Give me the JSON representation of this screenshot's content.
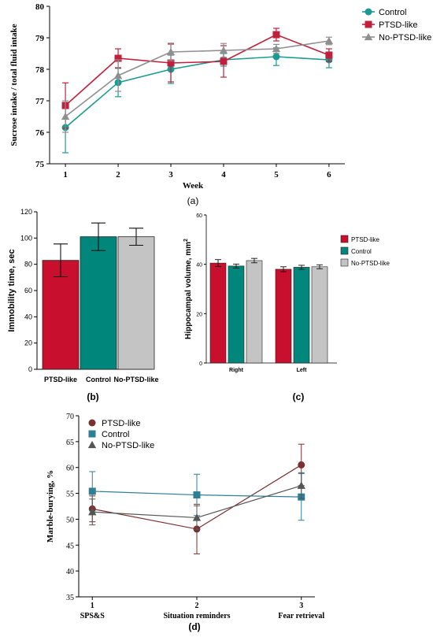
{
  "colors": {
    "control": "#1a9a92",
    "ptsd": "#c0203c",
    "nonptsd": "#8f8f8f",
    "ptsd_d": "#7a3030",
    "control_d": "#2e7f95",
    "nonptsd_d": "#555555",
    "ptsd_bar": "#c8102e",
    "control_bar": "#00867a",
    "nonptsd_bar": "#c4c4c4"
  },
  "chart_data": [
    {
      "id": "a",
      "type": "line",
      "panel_label": "(a)",
      "xlabel": "Week",
      "ylabel": "Sucrose intake / total fluid intake",
      "x": [
        1,
        2,
        3,
        4,
        5,
        6
      ],
      "xlim": [
        0.7,
        6.3
      ],
      "ylim": [
        75,
        80
      ],
      "yticks": [
        75,
        76,
        77,
        78,
        79,
        80
      ],
      "legend_position": "top-right",
      "series": [
        {
          "name": "Control",
          "key": "control",
          "marker": "circle",
          "values": [
            76.15,
            77.58,
            78.0,
            78.3,
            78.4,
            78.3
          ],
          "errors": [
            0.8,
            0.45,
            0.45,
            0.2,
            0.28,
            0.25
          ]
        },
        {
          "name": "PTSD-like",
          "key": "ptsd",
          "marker": "square",
          "values": [
            76.85,
            78.35,
            78.2,
            78.25,
            79.1,
            78.45
          ],
          "errors": [
            0.72,
            0.3,
            0.6,
            0.5,
            0.2,
            0.2
          ]
        },
        {
          "name": "No-PTSD-like",
          "key": "nonptsd",
          "marker": "triangle",
          "values": [
            76.5,
            77.8,
            78.55,
            78.6,
            78.65,
            78.9
          ],
          "errors": [
            0.5,
            0.5,
            0.28,
            0.22,
            0.14,
            0.12
          ]
        }
      ]
    },
    {
      "id": "b",
      "type": "bar",
      "panel_label": "(b)",
      "ylabel": "Immobility time, sec",
      "ylim": [
        0,
        120
      ],
      "yticks": [
        0,
        20,
        40,
        60,
        80,
        100,
        120
      ],
      "categories": [
        "PTSD-like",
        "Control",
        "No-PTSD-like"
      ],
      "keys": [
        "ptsd_bar",
        "control_bar",
        "nonptsd_bar"
      ],
      "values": [
        83,
        101,
        101
      ],
      "errors": [
        12.5,
        10.5,
        6.5
      ]
    },
    {
      "id": "c",
      "type": "bar",
      "panel_label": "(c)",
      "ylabel": "Hippocampal volume, mm",
      "ylabel_sup": "2",
      "ylim": [
        0,
        60
      ],
      "yticks": [
        0,
        20,
        40,
        60
      ],
      "categories": [
        "Right",
        "Left"
      ],
      "legend_position": "top-right",
      "series": [
        {
          "name": "PTSD-like",
          "key": "ptsd_bar",
          "values": [
            40.5,
            38.0
          ],
          "errors": [
            1.4,
            1.0
          ]
        },
        {
          "name": "Control",
          "key": "control_bar",
          "values": [
            39.3,
            38.8
          ],
          "errors": [
            0.8,
            0.8
          ]
        },
        {
          "name": "No-PTSD-like",
          "key": "nonptsd_bar",
          "values": [
            41.5,
            39.0
          ],
          "errors": [
            0.9,
            0.8
          ]
        }
      ]
    },
    {
      "id": "d",
      "type": "line",
      "panel_label": "(d)",
      "ylabel": "Marble-burying, %",
      "x": [
        1,
        2,
        3
      ],
      "xtick_labels": [
        "1",
        "2",
        "3"
      ],
      "xtick_sublabels": [
        "SPS&S",
        "Situation reminders",
        "Fear retrieval"
      ],
      "ylim": [
        35,
        70
      ],
      "yticks": [
        35,
        40,
        45,
        50,
        55,
        60,
        65,
        70
      ],
      "legend_position": "top-left",
      "series": [
        {
          "name": "PTSD-like",
          "key": "ptsd_d",
          "marker": "circle",
          "values": [
            52.0,
            48.1,
            60.5
          ],
          "errors": [
            2.5,
            4.8,
            4.0
          ]
        },
        {
          "name": "Control",
          "key": "control_d",
          "marker": "square",
          "values": [
            55.4,
            54.7,
            54.3
          ],
          "errors": [
            3.8,
            4.0,
            4.5
          ]
        },
        {
          "name": "No-PTSD-like",
          "key": "nonptsd_d",
          "marker": "triangle",
          "values": [
            51.4,
            50.3,
            56.5
          ],
          "errors": [
            2.5,
            2.3,
            2.5
          ]
        }
      ]
    }
  ]
}
